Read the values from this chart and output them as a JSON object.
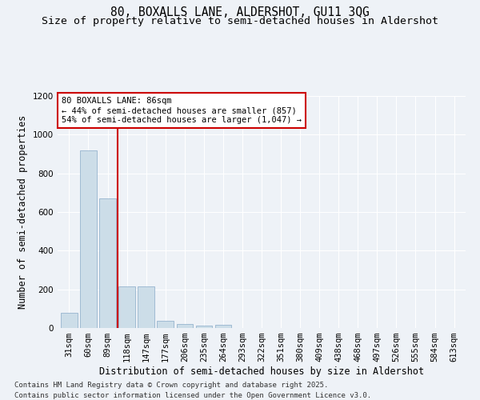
{
  "title_line1": "80, BOXALLS LANE, ALDERSHOT, GU11 3QG",
  "title_line2": "Size of property relative to semi-detached houses in Aldershot",
  "xlabel": "Distribution of semi-detached houses by size in Aldershot",
  "ylabel": "Number of semi-detached properties",
  "categories": [
    "31sqm",
    "60sqm",
    "89sqm",
    "118sqm",
    "147sqm",
    "177sqm",
    "206sqm",
    "235sqm",
    "264sqm",
    "293sqm",
    "322sqm",
    "351sqm",
    "380sqm",
    "409sqm",
    "438sqm",
    "468sqm",
    "497sqm",
    "526sqm",
    "555sqm",
    "584sqm",
    "613sqm"
  ],
  "values": [
    80,
    920,
    670,
    215,
    215,
    38,
    22,
    12,
    18,
    0,
    0,
    0,
    0,
    0,
    0,
    0,
    0,
    0,
    0,
    0,
    0
  ],
  "bar_color": "#ccdde8",
  "bar_edge_color": "#88aac8",
  "vline_x": 2.5,
  "vline_color": "#cc0000",
  "ylim": [
    0,
    1200
  ],
  "yticks": [
    0,
    200,
    400,
    600,
    800,
    1000,
    1200
  ],
  "annotation_text": "80 BOXALLS LANE: 86sqm\n← 44% of semi-detached houses are smaller (857)\n54% of semi-detached houses are larger (1,047) →",
  "annotation_box_color": "#cc0000",
  "footnote_line1": "Contains HM Land Registry data © Crown copyright and database right 2025.",
  "footnote_line2": "Contains public sector information licensed under the Open Government Licence v3.0.",
  "background_color": "#eef2f7",
  "grid_color": "#ffffff",
  "title_fontsize": 10.5,
  "subtitle_fontsize": 9.5,
  "axis_label_fontsize": 8.5,
  "tick_fontsize": 7.5,
  "annot_fontsize": 7.5,
  "footnote_fontsize": 6.5
}
